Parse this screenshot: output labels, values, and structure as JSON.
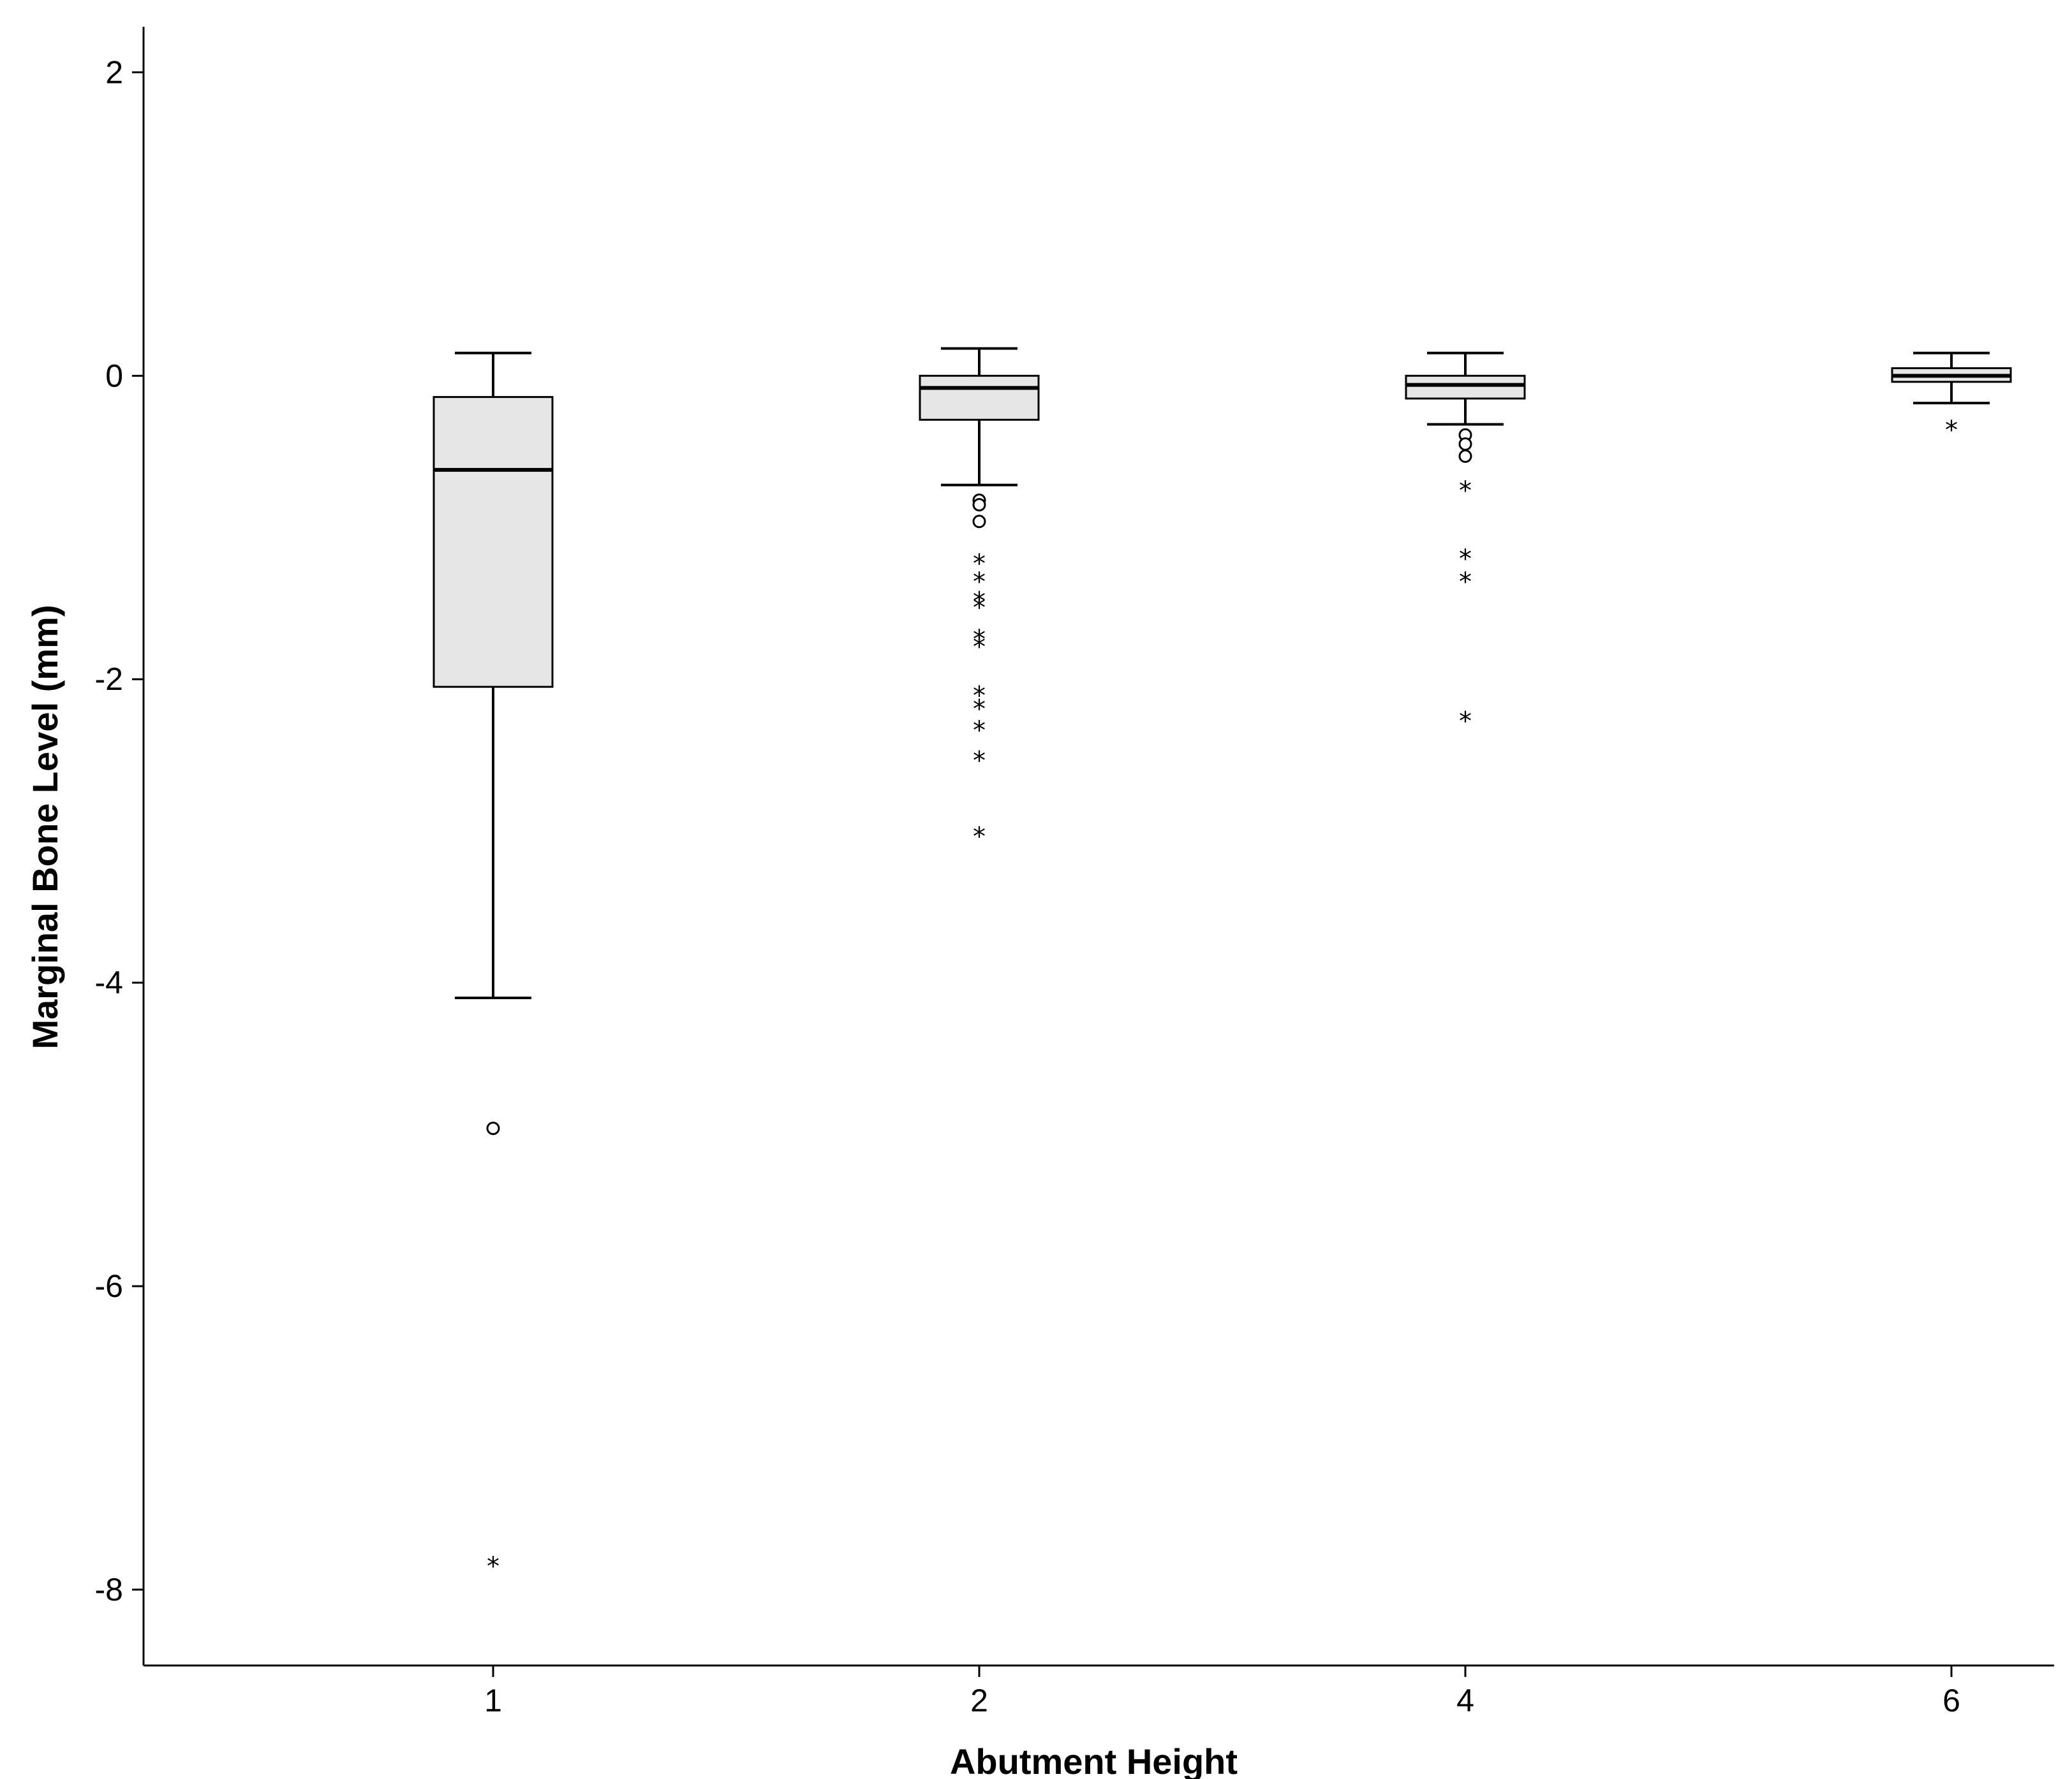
{
  "chart_data": {
    "type": "box",
    "xlabel": "Abutment Height",
    "ylabel": "Marginal Bone Level (mm)",
    "ylim": [
      -8.5,
      2.3
    ],
    "yticks": [
      2,
      0,
      -2,
      -4,
      -6,
      -8
    ],
    "ytick_labels": [
      "2",
      "0",
      "-2",
      "-4",
      "-6",
      "-8"
    ],
    "categories": [
      "1",
      "2",
      "4",
      "6"
    ],
    "boxes": [
      {
        "category": "1",
        "whisker_low": -4.1,
        "q1": -2.05,
        "median": -0.62,
        "q3": -0.14,
        "whisker_high": 0.15,
        "outliers": [
          -4.96
        ],
        "extremes": [
          -7.82
        ]
      },
      {
        "category": "2",
        "whisker_low": -0.72,
        "q1": -0.29,
        "median": -0.08,
        "q3": 0.0,
        "whisker_high": 0.18,
        "outliers": [
          -0.82,
          -0.85,
          -0.96
        ],
        "extremes": [
          -1.21,
          -1.33,
          -1.46,
          -1.5,
          -1.71,
          -1.76,
          -2.08,
          -2.17,
          -2.31,
          -2.51,
          -3.01
        ]
      },
      {
        "category": "4",
        "whisker_low": -0.32,
        "q1": -0.15,
        "median": -0.06,
        "q3": 0.0,
        "whisker_high": 0.15,
        "outliers": [
          -0.39,
          -0.45,
          -0.53
        ],
        "extremes": [
          -0.73,
          -1.18,
          -1.33,
          -2.25
        ]
      },
      {
        "category": "6",
        "whisker_low": -0.18,
        "q1": -0.04,
        "median": 0.0,
        "q3": 0.05,
        "whisker_high": 0.15,
        "outliers": [],
        "extremes": [
          -0.33
        ]
      }
    ],
    "colors": {
      "box_fill": "#e6e6e6",
      "stroke": "#000000"
    },
    "grid": false,
    "legend": "none"
  }
}
